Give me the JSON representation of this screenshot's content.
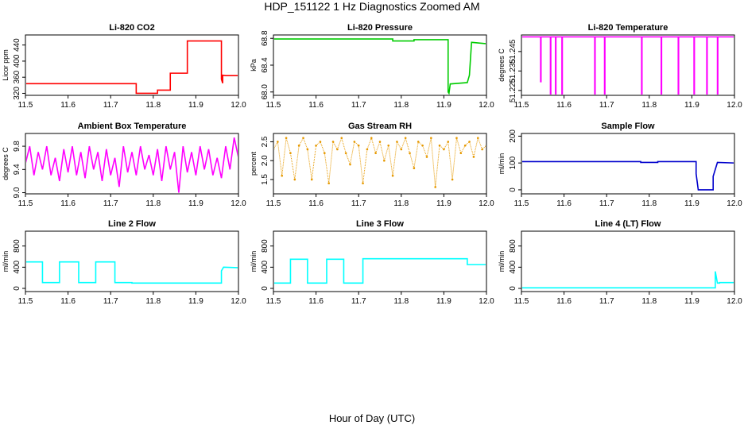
{
  "figure": {
    "title": "HDP_151122  1 Hz Diagnostics Zoomed AM",
    "xlabel": "Hour of Day (UTC)"
  },
  "chart_data": [
    {
      "type": "line",
      "title": "Li-820 CO2",
      "ylabel": "Licor ppm",
      "color": "#ff0000",
      "xlim": [
        11.5,
        12.0
      ],
      "ylim": [
        315,
        465
      ],
      "xticks": [
        "11.5",
        "11.6",
        "11.7",
        "11.8",
        "11.9",
        "12.0"
      ],
      "yticks": [
        {
          "v": 320,
          "t": "320"
        },
        {
          "v": 360,
          "t": "360"
        },
        {
          "v": 400,
          "t": "400"
        },
        {
          "v": 440,
          "t": "440"
        }
      ],
      "x": [
        11.5,
        11.76,
        11.76,
        11.81,
        11.81,
        11.84,
        11.84,
        11.88,
        11.88,
        11.96,
        11.96,
        11.963,
        11.963,
        11.97,
        12.0
      ],
      "y": [
        344,
        344,
        320,
        320,
        328,
        328,
        370,
        370,
        450,
        450,
        355,
        345,
        365,
        364,
        364
      ]
    },
    {
      "type": "line",
      "title": "Li-820 Pressure",
      "ylabel": "kPa",
      "color": "#00cc00",
      "xlim": [
        11.5,
        12.0
      ],
      "ylim": [
        67.95,
        68.85
      ],
      "xticks": [
        "11.5",
        "11.6",
        "11.7",
        "11.8",
        "11.9",
        "12.0"
      ],
      "yticks": [
        {
          "v": 68.0,
          "t": "68.0"
        },
        {
          "v": 68.4,
          "t": "68.4"
        },
        {
          "v": 68.8,
          "t": "68.8"
        }
      ],
      "x": [
        11.5,
        11.78,
        11.78,
        11.83,
        11.83,
        11.91,
        11.91,
        11.912,
        11.912,
        11.915,
        11.915,
        11.955,
        11.955,
        11.96,
        11.96,
        11.965,
        11.965,
        12.0
      ],
      "y": [
        68.79,
        68.79,
        68.76,
        68.76,
        68.78,
        68.78,
        68.0,
        67.98,
        67.98,
        68.12,
        68.12,
        68.14,
        68.14,
        68.25,
        68.25,
        68.74,
        68.74,
        68.72
      ]
    },
    {
      "type": "line",
      "title": "Li-820 Temperature",
      "ylabel": "degrees C",
      "color": "#ff00ff",
      "xlim": [
        11.5,
        12.0
      ],
      "ylim": [
        51.2225,
        51.2535
      ],
      "xticks": [
        "11.5",
        "11.6",
        "11.7",
        "11.8",
        "11.9",
        "12.0"
      ],
      "yticks": [
        {
          "v": 51.225,
          "t": "51.225"
        },
        {
          "v": 51.235,
          "t": "51.235"
        },
        {
          "v": 51.245,
          "t": "51.245"
        }
      ],
      "x": [
        11.5,
        11.545,
        11.545,
        11.546,
        11.546,
        11.568,
        11.568,
        11.569,
        11.569,
        11.58,
        11.58,
        11.581,
        11.581,
        11.595,
        11.595,
        11.596,
        11.596,
        11.672,
        11.672,
        11.673,
        11.673,
        11.695,
        11.695,
        11.696,
        11.696,
        11.782,
        11.782,
        11.783,
        11.783,
        11.828,
        11.828,
        11.829,
        11.829,
        11.868,
        11.868,
        11.869,
        11.869,
        11.905,
        11.905,
        11.906,
        11.906,
        11.935,
        11.935,
        11.936,
        11.936,
        11.96,
        11.96,
        11.961,
        11.961,
        12.0
      ],
      "y": [
        51.2525,
        51.2525,
        51.2295,
        51.2295,
        51.2525,
        51.2525,
        51.2225,
        51.2225,
        51.2525,
        51.2525,
        51.2225,
        51.2225,
        51.2525,
        51.2525,
        51.2225,
        51.2225,
        51.2525,
        51.2525,
        51.2225,
        51.2225,
        51.2525,
        51.2525,
        51.2225,
        51.2225,
        51.2525,
        51.2525,
        51.2225,
        51.2225,
        51.2525,
        51.2525,
        51.2225,
        51.2225,
        51.2525,
        51.2525,
        51.2225,
        51.2225,
        51.2525,
        51.2525,
        51.2225,
        51.2225,
        51.2525,
        51.2525,
        51.2225,
        51.2225,
        51.2525,
        51.2525,
        51.2225,
        51.2225,
        51.2525,
        51.2525
      ]
    },
    {
      "type": "line",
      "title": "Ambient Box Temperature",
      "ylabel": "degrees C",
      "color": "#ff00ff",
      "xlim": [
        11.5,
        12.0
      ],
      "ylim": [
        8.98,
        10.02
      ],
      "xticks": [
        "11.5",
        "11.6",
        "11.7",
        "11.8",
        "11.9",
        "12.0"
      ],
      "yticks": [
        {
          "v": 9.0,
          "t": "9.0"
        },
        {
          "v": 9.4,
          "t": "9.4"
        },
        {
          "v": 9.8,
          "t": "9.8"
        }
      ],
      "x": [
        11.5,
        11.51,
        11.52,
        11.53,
        11.54,
        11.55,
        11.56,
        11.57,
        11.58,
        11.59,
        11.6,
        11.61,
        11.62,
        11.63,
        11.64,
        11.65,
        11.66,
        11.67,
        11.68,
        11.69,
        11.7,
        11.71,
        11.72,
        11.73,
        11.74,
        11.75,
        11.76,
        11.77,
        11.78,
        11.79,
        11.8,
        11.81,
        11.82,
        11.83,
        11.84,
        11.85,
        11.86,
        11.87,
        11.88,
        11.89,
        11.9,
        11.91,
        11.92,
        11.93,
        11.94,
        11.95,
        11.96,
        11.97,
        11.98,
        11.99,
        12.0
      ],
      "y": [
        9.5,
        9.8,
        9.3,
        9.7,
        9.4,
        9.8,
        9.3,
        9.6,
        9.2,
        9.75,
        9.35,
        9.8,
        9.3,
        9.7,
        9.25,
        9.8,
        9.4,
        9.7,
        9.2,
        9.75,
        9.3,
        9.6,
        9.1,
        9.8,
        9.35,
        9.7,
        9.3,
        9.8,
        9.4,
        9.65,
        9.3,
        9.75,
        9.2,
        9.8,
        9.4,
        9.7,
        9.0,
        9.8,
        9.35,
        9.7,
        9.3,
        9.8,
        9.4,
        9.75,
        9.3,
        9.6,
        9.25,
        9.8,
        9.4,
        9.95,
        9.6
      ]
    },
    {
      "type": "scatter",
      "title": "Gas Stream RH",
      "ylabel": "percent",
      "color": "#e69900",
      "xlim": [
        11.5,
        12.0
      ],
      "ylim": [
        1.12,
        2.72
      ],
      "xticks": [
        "11.5",
        "11.6",
        "11.7",
        "11.8",
        "11.9",
        "12.0"
      ],
      "yticks": [
        {
          "v": 1.5,
          "t": "1.5"
        },
        {
          "v": 2.0,
          "t": "2.0"
        },
        {
          "v": 2.5,
          "t": "2.5"
        }
      ],
      "x": [
        11.5,
        11.51,
        11.52,
        11.53,
        11.54,
        11.55,
        11.56,
        11.57,
        11.58,
        11.59,
        11.6,
        11.61,
        11.62,
        11.63,
        11.64,
        11.65,
        11.66,
        11.67,
        11.68,
        11.69,
        11.7,
        11.71,
        11.72,
        11.73,
        11.74,
        11.75,
        11.76,
        11.77,
        11.78,
        11.79,
        11.8,
        11.81,
        11.82,
        11.83,
        11.84,
        11.85,
        11.86,
        11.87,
        11.88,
        11.89,
        11.9,
        11.91,
        11.92,
        11.93,
        11.94,
        11.95,
        11.96,
        11.97,
        11.98,
        11.99,
        12.0
      ],
      "y": [
        2.3,
        2.5,
        1.6,
        2.6,
        2.2,
        1.5,
        2.4,
        2.6,
        2.3,
        1.5,
        2.4,
        2.5,
        2.2,
        1.4,
        2.5,
        2.3,
        2.6,
        2.2,
        1.9,
        2.5,
        2.4,
        1.4,
        2.3,
        2.6,
        2.2,
        2.5,
        2.0,
        2.4,
        1.6,
        2.5,
        2.3,
        2.6,
        2.2,
        1.8,
        2.5,
        2.4,
        2.1,
        2.6,
        1.3,
        2.4,
        2.3,
        2.5,
        1.5,
        2.6,
        2.2,
        2.4,
        2.5,
        2.1,
        2.6,
        2.3,
        2.4
      ]
    },
    {
      "type": "line",
      "title": "Sample Flow",
      "ylabel": "ml/min",
      "color": "#0000cc",
      "xlim": [
        11.5,
        12.0
      ],
      "ylim": [
        -15,
        210
      ],
      "xticks": [
        "11.5",
        "11.6",
        "11.7",
        "11.8",
        "11.9",
        "12.0"
      ],
      "yticks": [
        {
          "v": 0,
          "t": "0"
        },
        {
          "v": 100,
          "t": "100"
        },
        {
          "v": 200,
          "t": "200"
        }
      ],
      "x": [
        11.5,
        11.78,
        11.78,
        11.82,
        11.82,
        11.91,
        11.91,
        11.915,
        11.915,
        11.95,
        11.95,
        11.96,
        11.96,
        12.0
      ],
      "y": [
        105,
        105,
        102,
        102,
        105,
        105,
        60,
        0,
        0,
        0,
        50,
        102,
        102,
        100
      ]
    },
    {
      "type": "line",
      "title": "Line 2 Flow",
      "ylabel": "ml/min",
      "color": "#00ffff",
      "xlim": [
        11.5,
        12.0
      ],
      "ylim": [
        -60,
        1080
      ],
      "xticks": [
        "11.5",
        "11.6",
        "11.7",
        "11.8",
        "11.9",
        "12.0"
      ],
      "yticks": [
        {
          "v": 0,
          "t": "0"
        },
        {
          "v": 400,
          "t": "400"
        },
        {
          "v": 800,
          "t": "800"
        }
      ],
      "x": [
        11.5,
        11.54,
        11.54,
        11.58,
        11.58,
        11.625,
        11.625,
        11.665,
        11.665,
        11.71,
        11.71,
        11.75,
        11.75,
        11.96,
        11.96,
        11.965,
        11.965,
        12.0
      ],
      "y": [
        500,
        500,
        110,
        110,
        500,
        500,
        110,
        110,
        500,
        500,
        110,
        110,
        100,
        100,
        330,
        400,
        400,
        390
      ]
    },
    {
      "type": "line",
      "title": "Line 3 Flow",
      "ylabel": "ml/min",
      "color": "#00ffff",
      "xlim": [
        11.5,
        12.0
      ],
      "ylim": [
        -60,
        1080
      ],
      "xticks": [
        "11.5",
        "11.6",
        "11.7",
        "11.8",
        "11.9",
        "12.0"
      ],
      "yticks": [
        {
          "v": 0,
          "t": "0"
        },
        {
          "v": 400,
          "t": "400"
        },
        {
          "v": 800,
          "t": "800"
        }
      ],
      "x": [
        11.5,
        11.54,
        11.54,
        11.58,
        11.58,
        11.625,
        11.625,
        11.665,
        11.665,
        11.71,
        11.71,
        11.955,
        11.955,
        12.0
      ],
      "y": [
        100,
        100,
        550,
        550,
        100,
        100,
        550,
        550,
        100,
        100,
        560,
        560,
        450,
        450
      ]
    },
    {
      "type": "line",
      "title": "Line 4 (LT) Flow",
      "ylabel": "ml/min",
      "color": "#00ffff",
      "xlim": [
        11.5,
        12.0
      ],
      "ylim": [
        -60,
        1080
      ],
      "xticks": [
        "11.5",
        "11.6",
        "11.7",
        "11.8",
        "11.9",
        "12.0"
      ],
      "yticks": [
        {
          "v": 0,
          "t": "0"
        },
        {
          "v": 400,
          "t": "400"
        },
        {
          "v": 800,
          "t": "800"
        }
      ],
      "x": [
        11.5,
        11.955,
        11.955,
        11.96,
        11.965,
        11.965,
        12.0
      ],
      "y": [
        10,
        10,
        320,
        100,
        100,
        110,
        110
      ]
    }
  ]
}
